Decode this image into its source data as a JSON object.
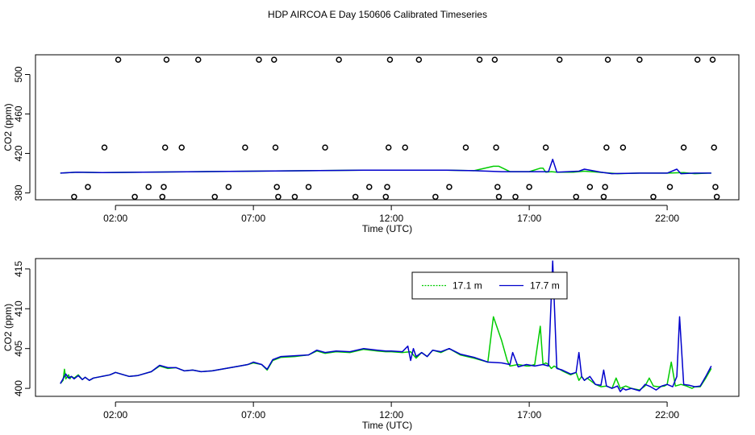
{
  "title": "HDP AIRCOA E  Day 150606  Calibrated Timeseries",
  "chart_data": [
    {
      "type": "scatter",
      "xlabel": "Time (UTC)",
      "ylabel": "CO2 (ppm)",
      "xticks": [
        2,
        7,
        12,
        17,
        22
      ],
      "xtick_labels": [
        "02:00",
        "07:00",
        "12:00",
        "17:00",
        "22:00"
      ],
      "yticks": [
        380,
        420,
        460,
        500
      ],
      "xlim": [
        -0.9,
        24.6
      ],
      "ylim": [
        373,
        520
      ],
      "colors": {
        "17.1 m": "#00cc00",
        "17.7 m": "#0000cc",
        "markers": "#000000"
      },
      "markers": [
        {
          "x": 0.5,
          "y": 376
        },
        {
          "x": 1.0,
          "y": 386
        },
        {
          "x": 1.6,
          "y": 426
        },
        {
          "x": 2.1,
          "y": 515
        },
        {
          "x": 2.7,
          "y": 376
        },
        {
          "x": 3.2,
          "y": 386
        },
        {
          "x": 3.7,
          "y": 376
        },
        {
          "x": 3.75,
          "y": 386
        },
        {
          "x": 3.8,
          "y": 426
        },
        {
          "x": 3.85,
          "y": 515
        },
        {
          "x": 4.4,
          "y": 426
        },
        {
          "x": 5.0,
          "y": 515
        },
        {
          "x": 5.6,
          "y": 376
        },
        {
          "x": 6.1,
          "y": 386
        },
        {
          "x": 6.7,
          "y": 426
        },
        {
          "x": 7.2,
          "y": 515
        },
        {
          "x": 7.75,
          "y": 515
        },
        {
          "x": 7.8,
          "y": 426
        },
        {
          "x": 7.85,
          "y": 386
        },
        {
          "x": 7.9,
          "y": 376
        },
        {
          "x": 8.5,
          "y": 376
        },
        {
          "x": 9.0,
          "y": 386
        },
        {
          "x": 9.6,
          "y": 426
        },
        {
          "x": 10.1,
          "y": 515
        },
        {
          "x": 10.7,
          "y": 376
        },
        {
          "x": 11.2,
          "y": 386
        },
        {
          "x": 11.8,
          "y": 376
        },
        {
          "x": 11.85,
          "y": 386
        },
        {
          "x": 11.9,
          "y": 426
        },
        {
          "x": 11.95,
          "y": 515
        },
        {
          "x": 12.5,
          "y": 426
        },
        {
          "x": 13.0,
          "y": 515
        },
        {
          "x": 13.6,
          "y": 376
        },
        {
          "x": 14.1,
          "y": 386
        },
        {
          "x": 14.7,
          "y": 426
        },
        {
          "x": 15.2,
          "y": 515
        },
        {
          "x": 15.75,
          "y": 515
        },
        {
          "x": 15.8,
          "y": 426
        },
        {
          "x": 15.85,
          "y": 386
        },
        {
          "x": 15.9,
          "y": 376
        },
        {
          "x": 16.5,
          "y": 376
        },
        {
          "x": 17.0,
          "y": 386
        },
        {
          "x": 17.6,
          "y": 426
        },
        {
          "x": 18.1,
          "y": 515
        },
        {
          "x": 18.7,
          "y": 376
        },
        {
          "x": 19.2,
          "y": 386
        },
        {
          "x": 19.7,
          "y": 376
        },
        {
          "x": 19.75,
          "y": 386
        },
        {
          "x": 19.8,
          "y": 426
        },
        {
          "x": 19.85,
          "y": 515
        },
        {
          "x": 20.4,
          "y": 426
        },
        {
          "x": 21.0,
          "y": 515
        },
        {
          "x": 21.5,
          "y": 376
        },
        {
          "x": 22.1,
          "y": 386
        },
        {
          "x": 22.6,
          "y": 426
        },
        {
          "x": 23.1,
          "y": 515
        },
        {
          "x": 23.65,
          "y": 515
        },
        {
          "x": 23.7,
          "y": 426
        },
        {
          "x": 23.75,
          "y": 386
        },
        {
          "x": 23.8,
          "y": 376
        }
      ],
      "series": [
        {
          "name": "17.1 m",
          "x": [
            0,
            0.6,
            1.5,
            3,
            5,
            7,
            9,
            11,
            12.5,
            14,
            15,
            15.7,
            15.9,
            16.3,
            17,
            17.4,
            17.5,
            17.6,
            17.8,
            18,
            18.6,
            19,
            19.7,
            20.2,
            21,
            22,
            22.6,
            23,
            23.5,
            23.6
          ],
          "y": [
            400,
            401,
            400.5,
            401,
            401.5,
            402,
            402.5,
            403,
            403,
            403,
            402.5,
            407,
            407,
            401.5,
            401.5,
            405,
            405,
            401,
            401.5,
            401,
            401,
            402,
            400.5,
            399.5,
            400,
            400,
            400.5,
            399.5,
            400,
            400
          ]
        },
        {
          "name": "17.7 m",
          "x": [
            0,
            0.6,
            1.5,
            3,
            5,
            7,
            9,
            11,
            12.5,
            14,
            15,
            16,
            17,
            17.7,
            17.85,
            18,
            18.8,
            19,
            19.6,
            20,
            21,
            22,
            22.35,
            22.5,
            23,
            23.5,
            23.6
          ],
          "y": [
            400,
            401,
            400.5,
            401,
            401.5,
            402,
            402.5,
            403,
            403,
            403,
            402.5,
            401.5,
            401.5,
            401.5,
            414,
            401,
            402,
            404,
            401,
            399.5,
            400,
            400,
            404,
            399.5,
            400,
            400,
            400
          ]
        }
      ]
    },
    {
      "type": "line",
      "xlabel": "Time (UTC)",
      "ylabel": "CO2 (ppm)",
      "xticks": [
        2,
        7,
        12,
        17,
        22
      ],
      "xtick_labels": [
        "02:00",
        "07:00",
        "12:00",
        "17:00",
        "22:00"
      ],
      "yticks": [
        400,
        405,
        410,
        415
      ],
      "xlim": [
        -0.9,
        24.6
      ],
      "ylim": [
        399,
        416.3
      ],
      "legend": {
        "position": "top-right",
        "entries": [
          "17.1 m",
          "17.7 m"
        ]
      },
      "series": [
        {
          "name": "17.1 m",
          "color": "#00cc00",
          "x": [
            0,
            0.1,
            0.15,
            0.2,
            0.3,
            0.35,
            0.4,
            0.5,
            0.65,
            0.8,
            0.9,
            1.05,
            1.2,
            1.5,
            1.8,
            2.0,
            2.2,
            2.5,
            2.8,
            3.0,
            3.3,
            3.6,
            3.9,
            4.2,
            4.5,
            4.8,
            5.1,
            5.5,
            6.0,
            6.5,
            6.8,
            7.0,
            7.3,
            7.5,
            7.7,
            8.0,
            8.5,
            9.0,
            9.3,
            9.6,
            10.0,
            10.5,
            11.0,
            11.5,
            11.8,
            12.0,
            12.4,
            12.7,
            12.9,
            13.1,
            13.3,
            13.5,
            13.8,
            14.1,
            14.5,
            15.0,
            15.5,
            15.7,
            16.0,
            16.2,
            16.3,
            16.6,
            16.9,
            17.0,
            17.2,
            17.4,
            17.5,
            17.6,
            17.7,
            17.8,
            17.9,
            18.2,
            18.5,
            18.7,
            18.8,
            18.9,
            19.0,
            19.1,
            19.4,
            19.6,
            19.8,
            20.0,
            20.15,
            20.3,
            20.5,
            20.7,
            21.0,
            21.2,
            21.35,
            21.5,
            21.7,
            21.9,
            22.0,
            22.15,
            22.3,
            22.5,
            22.7,
            22.9,
            23.0,
            23.2,
            23.4,
            23.6
          ],
          "y": [
            400.6,
            401,
            402.4,
            401.2,
            401.7,
            401.2,
            401.5,
            401.3,
            401.7,
            401.1,
            401.4,
            401.0,
            401.3,
            401.5,
            401.7,
            402.0,
            401.8,
            401.5,
            401.6,
            401.8,
            402.1,
            402.8,
            402.5,
            402.6,
            402.2,
            402.3,
            402.1,
            402.2,
            402.5,
            402.8,
            403.0,
            403.2,
            403.0,
            402.3,
            403.5,
            403.9,
            404.0,
            404.2,
            404.7,
            404.4,
            404.6,
            404.5,
            404.9,
            404.7,
            404.6,
            404.6,
            404.5,
            404.6,
            403.8,
            404.5,
            404.0,
            404.8,
            404.5,
            405.0,
            404.2,
            403.8,
            403.3,
            409.0,
            406.0,
            403.5,
            402.8,
            403.0,
            402.8,
            402.8,
            403.0,
            407.8,
            403.0,
            403.2,
            403.0,
            402.5,
            402.8,
            402.2,
            401.7,
            402.0,
            401.0,
            401.5,
            401.0,
            401.3,
            400.5,
            400.2,
            400.3,
            400.0,
            401.3,
            400.0,
            400.3,
            400.0,
            399.8,
            400.3,
            401.3,
            400.3,
            400.2,
            400.3,
            400.5,
            403.3,
            400.3,
            400.5,
            400.3,
            400.0,
            400.2,
            400.2,
            401.3,
            402.5
          ]
        },
        {
          "name": "17.7 m",
          "color": "#0000cc",
          "x": [
            0,
            0.1,
            0.2,
            0.3,
            0.4,
            0.5,
            0.65,
            0.8,
            0.9,
            1.05,
            1.2,
            1.5,
            1.8,
            2.0,
            2.2,
            2.5,
            2.8,
            3.0,
            3.3,
            3.6,
            3.9,
            4.2,
            4.5,
            4.8,
            5.1,
            5.5,
            6.0,
            6.5,
            6.8,
            7.0,
            7.3,
            7.5,
            7.7,
            8.0,
            8.5,
            9.0,
            9.3,
            9.6,
            10.0,
            10.5,
            11.0,
            11.5,
            11.8,
            12.0,
            12.4,
            12.6,
            12.7,
            12.8,
            12.9,
            13.1,
            13.3,
            13.5,
            13.8,
            14.1,
            14.5,
            15.0,
            15.5,
            16.0,
            16.3,
            16.4,
            16.6,
            16.9,
            17.2,
            17.5,
            17.7,
            17.85,
            18.0,
            18.2,
            18.5,
            18.7,
            18.8,
            18.9,
            19.0,
            19.2,
            19.4,
            19.6,
            19.7,
            19.8,
            20.0,
            20.2,
            20.3,
            20.4,
            20.5,
            20.7,
            21.0,
            21.2,
            21.4,
            21.6,
            21.8,
            22.0,
            22.2,
            22.35,
            22.45,
            22.6,
            22.8,
            23.0,
            23.2,
            23.4,
            23.6
          ],
          "y": [
            400.6,
            401.2,
            401.8,
            401.3,
            401.5,
            401.2,
            401.6,
            401.1,
            401.4,
            401.0,
            401.3,
            401.5,
            401.7,
            402.0,
            401.8,
            401.5,
            401.6,
            401.8,
            402.1,
            402.9,
            402.6,
            402.6,
            402.2,
            402.3,
            402.1,
            402.2,
            402.5,
            402.8,
            403.0,
            403.3,
            403.0,
            402.4,
            403.6,
            404.0,
            404.1,
            404.2,
            404.8,
            404.5,
            404.7,
            404.6,
            405.0,
            404.8,
            404.7,
            404.7,
            404.6,
            405.3,
            403.5,
            405.0,
            404.0,
            404.5,
            404.0,
            404.8,
            404.6,
            405.0,
            404.3,
            403.9,
            403.3,
            403.2,
            403.0,
            404.5,
            402.7,
            403.0,
            402.8,
            403.0,
            402.8,
            416.0,
            402.5,
            402.3,
            401.8,
            402.0,
            404.5,
            401.5,
            401.0,
            401.5,
            400.5,
            400.4,
            402.3,
            400.3,
            400.0,
            400.3,
            399.6,
            400.0,
            399.8,
            400.0,
            399.7,
            400.5,
            400.2,
            399.8,
            400.3,
            400.5,
            400.2,
            401.5,
            409.0,
            400.5,
            400.4,
            400.2,
            400.3,
            401.5,
            402.8
          ]
        }
      ]
    }
  ]
}
